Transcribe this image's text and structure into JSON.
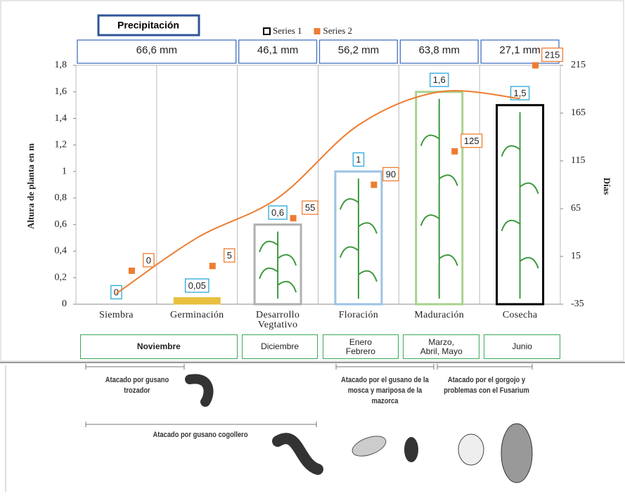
{
  "chart_data": {
    "type": "bar",
    "title": "Precipitación",
    "categories": [
      "Siembra",
      "Germinación",
      "Desarrollo Vegtativo",
      "Floración",
      "Maduración",
      "Cosecha"
    ],
    "series": [
      {
        "name": "Series 1",
        "color": "#000000",
        "values": [
          0,
          0.05,
          0.6,
          1,
          1.6,
          1.5
        ],
        "value_labels": [
          "0",
          "0,05",
          "0,6",
          "1",
          "1,6",
          "1,5"
        ],
        "point_colors": [
          "#999999",
          "#e8c040",
          "#b0b0b0",
          "#9cc3e6",
          "#a9d18e",
          "#000000"
        ],
        "label_color": "#29a9d6"
      },
      {
        "name": "Series 2",
        "color": "#ed7d31",
        "axis": "y2",
        "values": [
          0,
          5,
          55,
          90,
          125,
          215
        ]
      }
    ],
    "trend": {
      "color": "#ed7d31",
      "values": [
        0.08,
        0.5,
        0.8,
        1.35,
        1.6,
        1.55
      ]
    },
    "ylabel": "Altura de planta en m",
    "y2label": "Días",
    "ylim": [
      0,
      1.8
    ],
    "yticks": [
      0,
      {
        "value": 0.2,
        "label": "0,2"
      },
      {
        "value": 0.4,
        "label": "0,4"
      },
      {
        "value": 0.6,
        "label": "0,6"
      },
      {
        "value": 0.8,
        "label": "0,8"
      },
      1,
      {
        "value": 1.2,
        "label": "1,2"
      },
      {
        "value": 1.4,
        "label": "1,4"
      },
      {
        "value": 1.6,
        "label": "1,6"
      },
      {
        "value": 1.8,
        "label": "1,8"
      }
    ],
    "y2lim": [
      -35,
      215
    ],
    "y2ticks": [
      -35,
      15,
      65,
      115,
      165,
      215
    ],
    "legend": "top",
    "precipitation": [
      "66,6 mm",
      "46,1 mm",
      "56,2 mm",
      "63,8 mm",
      "27,1 mm"
    ],
    "months": [
      "Noviembre",
      "Diciembre",
      "Enero Febrero",
      "Marzo, Abril, Mayo",
      "Junio"
    ]
  },
  "pests": [
    "Atacado por gusano trozador",
    "Atacado por gusano cogollero",
    "Atacado por el gusano de la mosca y mariposa de la mazorca",
    "Atacado por el gorgojo y problemas con el Fusarium"
  ]
}
